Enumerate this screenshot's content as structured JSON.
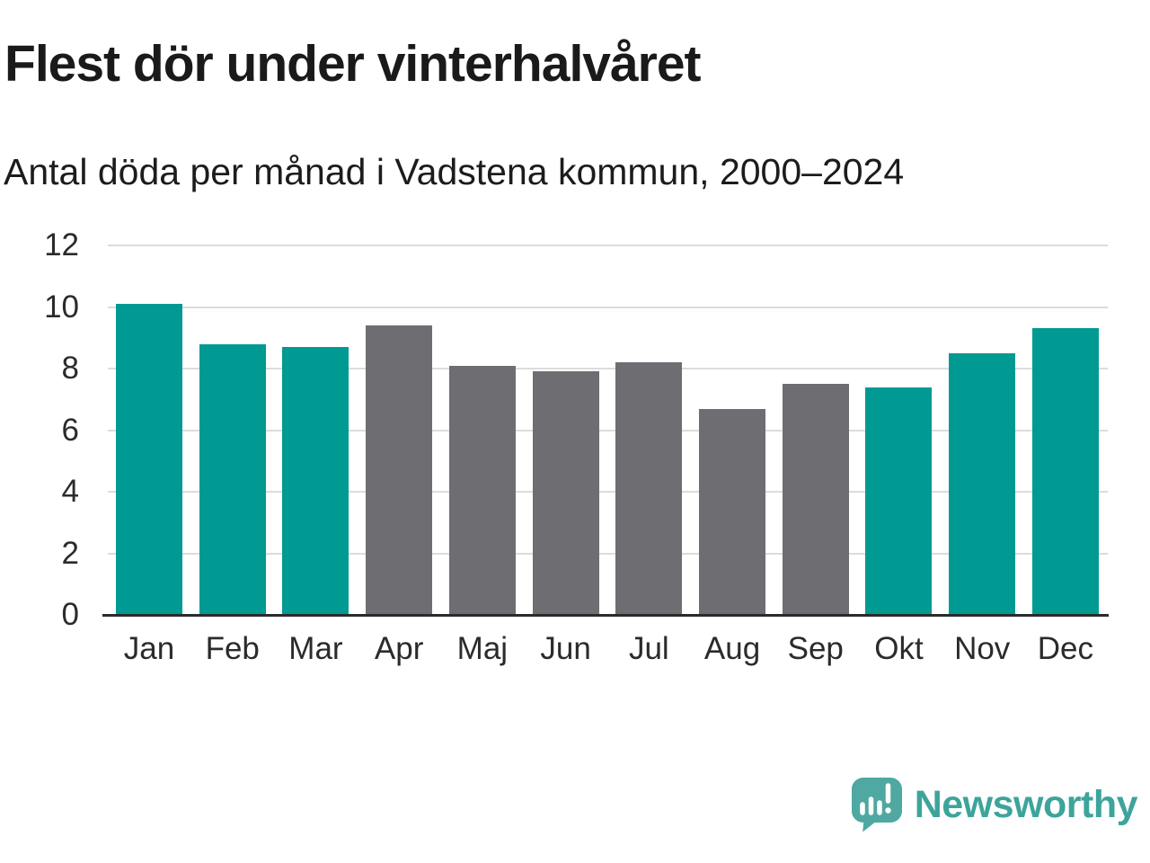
{
  "title": "Flest dör under vinterhalvåret",
  "subtitle": "Antal döda per månad i Vadstena kommun, 2000–2024",
  "chart_data": {
    "type": "bar",
    "title": "Flest dör under vinterhalvåret",
    "subtitle": "Antal döda per månad i Vadstena kommun, 2000–2024",
    "categories": [
      "Jan",
      "Feb",
      "Mar",
      "Apr",
      "Maj",
      "Jun",
      "Jul",
      "Aug",
      "Sep",
      "Okt",
      "Nov",
      "Dec"
    ],
    "values": [
      10.1,
      8.8,
      8.7,
      9.4,
      8.1,
      7.9,
      8.2,
      6.7,
      7.5,
      7.4,
      8.5,
      9.3
    ],
    "bar_colors": [
      "#009A93",
      "#009A93",
      "#009A93",
      "#6E6E72",
      "#6E6E72",
      "#6E6E72",
      "#6E6E72",
      "#6E6E72",
      "#6E6E72",
      "#009A93",
      "#009A93",
      "#009A93"
    ],
    "xlabel": "",
    "ylabel": "",
    "ylim": [
      0,
      12
    ],
    "yticks": [
      0,
      2,
      4,
      6,
      8,
      10,
      12
    ],
    "grid": true,
    "legend": "none",
    "highlight_color": "#009A93",
    "default_color": "#6E6E72",
    "gridline_color": "#DCDCDC",
    "axis_line_color": "#2B2B2B"
  },
  "branding": {
    "logo_text": "Newsworthy",
    "logo_color": "#3DA49B",
    "logo_icon": "newsworthy-speech-bubble-bar-chart-icon",
    "logo_icon_color": "#4FA8A1"
  }
}
